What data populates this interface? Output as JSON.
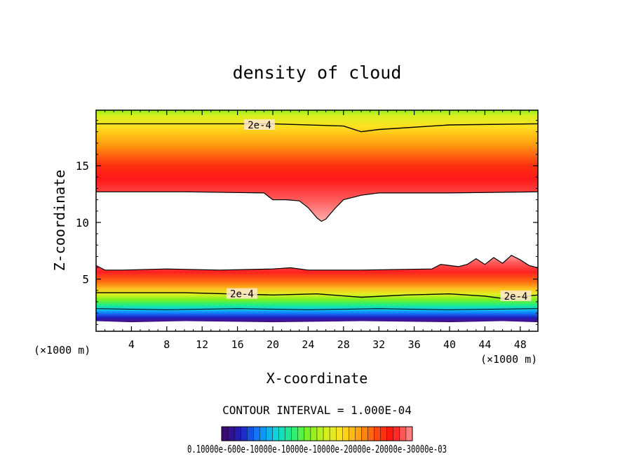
{
  "chart_data": {
    "type": "heatmap",
    "title": "density of cloud",
    "xlabel": "X-coordinate",
    "ylabel": "Z-coordinate",
    "x_unit_left": "(×1000 m)",
    "x_unit_right": "(×1000 m)",
    "xlim": [
      0,
      50
    ],
    "ylim": [
      0.4,
      19.9
    ],
    "x_ticks": [
      4,
      8,
      12,
      16,
      20,
      24,
      28,
      32,
      36,
      40,
      44,
      48
    ],
    "x_tick_labels": [
      "4",
      "8",
      "12",
      "16",
      "20",
      "24",
      "28",
      "32",
      "36",
      "40",
      "44",
      "48"
    ],
    "y_ticks": [
      5,
      10,
      15
    ],
    "y_tick_labels": [
      "5",
      "10",
      "15"
    ],
    "contour_labels": [
      {
        "text": "2e-4",
        "x": 18.5,
        "z": 18.6
      },
      {
        "text": "2e-4",
        "x": 16.5,
        "z": 3.7
      },
      {
        "text": "2e-4",
        "x": 47.5,
        "z": 3.5
      }
    ],
    "contour_interval_text": "CONTOUR INTERVAL = 1.000E-04",
    "colorbar_labels_text": "0.10000e-600e-10000e-10000e-10000e-20000e-20000e-30000e-03",
    "colormap": [
      "#3a0a6e",
      "#2020c0",
      "#1080ff",
      "#10d0e0",
      "#20f080",
      "#80f020",
      "#d0f020",
      "#ffe020",
      "#ffa010",
      "#ff5010",
      "#ff1010",
      "#ff8080"
    ]
  }
}
